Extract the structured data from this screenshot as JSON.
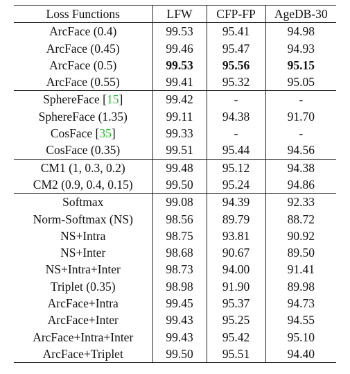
{
  "header": {
    "col0": "Loss Functions",
    "col1": "LFW",
    "col2": "CFP-FP",
    "col3": "AgeDB-30"
  },
  "rows": [
    {
      "name": "ArcFace (0.4)",
      "lfw": "99.53",
      "cfp": "95.41",
      "agedb": "94.98"
    },
    {
      "name": "ArcFace (0.45)",
      "lfw": "99.46",
      "cfp": "95.47",
      "agedb": "94.93"
    },
    {
      "name": "ArcFace (0.5)",
      "lfw": "99.53",
      "cfp": "95.56",
      "agedb": "95.15"
    },
    {
      "name": "ArcFace (0.55)",
      "lfw": "99.41",
      "cfp": "95.32",
      "agedb": "95.05"
    },
    {
      "name_prefix": "SphereFace [",
      "cite": "15",
      "name_suffix": "]",
      "lfw": "99.42",
      "cfp": "-",
      "agedb": "-"
    },
    {
      "name": "SphereFace (1.35)",
      "lfw": "99.11",
      "cfp": "94.38",
      "agedb": "91.70"
    },
    {
      "name_prefix": "CosFace [",
      "cite": "35",
      "name_suffix": "]",
      "lfw": "99.33",
      "cfp": "-",
      "agedb": "-"
    },
    {
      "name": "CosFace (0.35)",
      "lfw": "99.51",
      "cfp": "95.44",
      "agedb": "94.56"
    },
    {
      "name": "CM1 (1, 0.3, 0.2)",
      "lfw": "99.48",
      "cfp": "95.12",
      "agedb": "94.38"
    },
    {
      "name": "CM2 (0.9, 0.4, 0.15)",
      "lfw": "99.50",
      "cfp": "95.24",
      "agedb": "94.86"
    },
    {
      "name": "Softmax",
      "lfw": "99.08",
      "cfp": "94.39",
      "agedb": "92.33"
    },
    {
      "name": "Norm-Softmax (NS)",
      "lfw": "98.56",
      "cfp": "89.79",
      "agedb": "88.72"
    },
    {
      "name": "NS+Intra",
      "lfw": "98.75",
      "cfp": "93.81",
      "agedb": "90.92"
    },
    {
      "name": "NS+Inter",
      "lfw": "98.68",
      "cfp": "90.67",
      "agedb": "89.50"
    },
    {
      "name": "NS+Intra+Inter",
      "lfw": "98.73",
      "cfp": "94.00",
      "agedb": "91.41"
    },
    {
      "name": "Triplet (0.35)",
      "lfw": "98.98",
      "cfp": "91.90",
      "agedb": "89.98"
    },
    {
      "name": "ArcFace+Intra",
      "lfw": "99.45",
      "cfp": "95.37",
      "agedb": "94.73"
    },
    {
      "name": "ArcFace+Inter",
      "lfw": "99.43",
      "cfp": "95.25",
      "agedb": "94.55"
    },
    {
      "name": "ArcFace+Intra+Inter",
      "lfw": "99.43",
      "cfp": "95.42",
      "agedb": "95.10"
    },
    {
      "name": "ArcFace+Triplet",
      "lfw": "99.50",
      "cfp": "95.51",
      "agedb": "94.40"
    }
  ],
  "colors": {
    "citation": "#22b82a",
    "rule": "#222222",
    "text": "#111111"
  }
}
